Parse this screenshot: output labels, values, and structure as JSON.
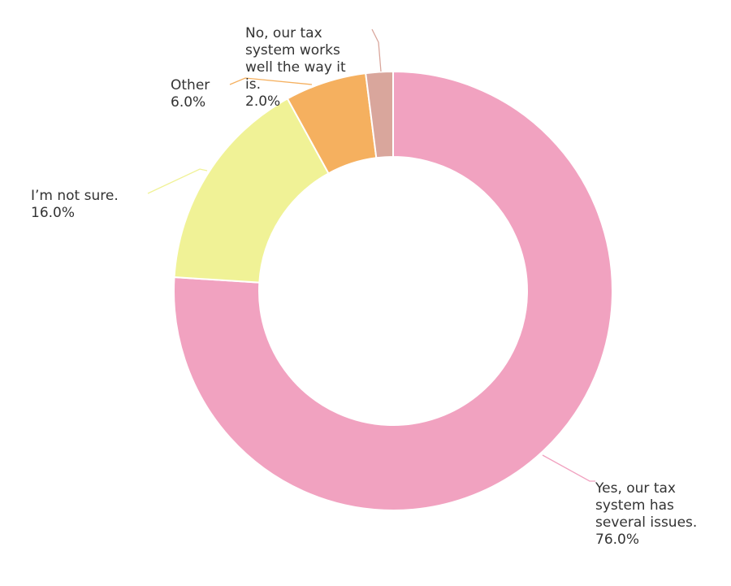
{
  "chart_data": {
    "type": "pie",
    "donut": true,
    "slices": [
      {
        "label_lines": [
          "Yes, our tax",
          "system has",
          "several issues."
        ],
        "value_label": "76.0%",
        "value": 76.0,
        "color": "#f1a2c0"
      },
      {
        "label_lines": [
          "I’m not sure."
        ],
        "value_label": "16.0%",
        "value": 16.0,
        "color": "#f0f296"
      },
      {
        "label_lines": [
          "Other"
        ],
        "value_label": "6.0%",
        "value": 6.0,
        "color": "#f5b05f"
      },
      {
        "label_lines": [
          "No, our tax",
          "system works",
          "well the way it",
          "is."
        ],
        "value_label": "2.0%",
        "value": 2.0,
        "color": "#d9a69c"
      }
    ]
  }
}
